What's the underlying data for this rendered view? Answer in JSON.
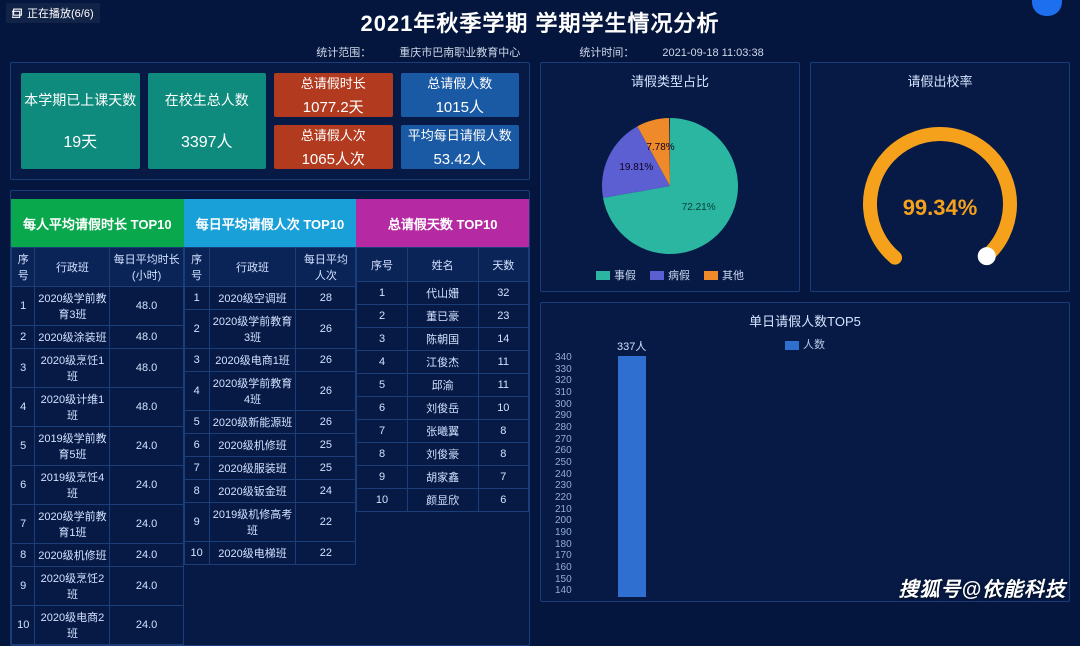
{
  "playback": "正在播放(6/6)",
  "title": "2021年秋季学期 学期学生情况分析",
  "sub_scope_label": "统计范围：",
  "sub_scope_value": "重庆市巴南职业教育中心",
  "sub_time_label": "统计时间：",
  "sub_time_value": "2021-09-18 11:03:38",
  "colors": {
    "page_bg": "#04163d",
    "panel_border": "#1a3d7a",
    "panel_bg": "#061a45"
  },
  "kpis": {
    "big": [
      {
        "label": "本学期已上课天数",
        "value": "19天",
        "bg": "#0f8b7e"
      },
      {
        "label": "在校生总人数",
        "value": "3397人",
        "bg": "#0f8b7e"
      }
    ],
    "small": [
      {
        "label": "总请假时长",
        "value": "1077.2天",
        "bg": "#b23a1f"
      },
      {
        "label": "总请假人数",
        "value": "1015人",
        "bg": "#1a5aa5"
      },
      {
        "label": "总请假人次",
        "value": "1065人次",
        "bg": "#b23a1f"
      },
      {
        "label": "平均每日请假人数",
        "value": "53.42人",
        "bg": "#1a5aa5"
      }
    ]
  },
  "tabs": [
    {
      "label": "每人平均请假时长 TOP10",
      "bg": "#0aa84d"
    },
    {
      "label": "每日平均请假人次 TOP10",
      "bg": "#1aa0d8"
    },
    {
      "label": "总请假天数 TOP10",
      "bg": "#b52aa2"
    }
  ],
  "table1": {
    "headers": [
      "序号",
      "行政班",
      "每日平均时长(小时)"
    ],
    "rows": [
      [
        "1",
        "2020级学前教育3班",
        "48.0"
      ],
      [
        "2",
        "2020级涂装班",
        "48.0"
      ],
      [
        "3",
        "2020级烹饪1班",
        "48.0"
      ],
      [
        "4",
        "2020级计维1班",
        "48.0"
      ],
      [
        "5",
        "2019级学前教育5班",
        "24.0"
      ],
      [
        "6",
        "2019级烹饪4班",
        "24.0"
      ],
      [
        "7",
        "2020级学前教育1班",
        "24.0"
      ],
      [
        "8",
        "2020级机修班",
        "24.0"
      ],
      [
        "9",
        "2020级烹饪2班",
        "24.0"
      ],
      [
        "10",
        "2020级电商2班",
        "24.0"
      ]
    ]
  },
  "table2": {
    "headers": [
      "序号",
      "行政班",
      "每日平均人次"
    ],
    "rows": [
      [
        "1",
        "2020级空调班",
        "28"
      ],
      [
        "2",
        "2020级学前教育3班",
        "26"
      ],
      [
        "3",
        "2020级电商1班",
        "26"
      ],
      [
        "4",
        "2020级学前教育4班",
        "26"
      ],
      [
        "5",
        "2020级新能源班",
        "26"
      ],
      [
        "6",
        "2020级机修班",
        "25"
      ],
      [
        "7",
        "2020级服装班",
        "25"
      ],
      [
        "8",
        "2020级钣金班",
        "24"
      ],
      [
        "9",
        "2019级机修高考班",
        "22"
      ],
      [
        "10",
        "2020级电梯班",
        "22"
      ]
    ]
  },
  "table3": {
    "headers": [
      "序号",
      "姓名",
      "天数"
    ],
    "rows": [
      [
        "1",
        "代山姗",
        "32"
      ],
      [
        "2",
        "董已豪",
        "23"
      ],
      [
        "3",
        "陈朝国",
        "14"
      ],
      [
        "4",
        "江俊杰",
        "11"
      ],
      [
        "5",
        "邱渝",
        "11"
      ],
      [
        "6",
        "刘俊岳",
        "10"
      ],
      [
        "7",
        "张曦翼",
        "8"
      ],
      [
        "8",
        "刘俊豪",
        "8"
      ],
      [
        "9",
        "胡家鑫",
        "7"
      ],
      [
        "10",
        "颜显欣",
        "6"
      ]
    ]
  },
  "pie": {
    "title": "请假类型占比",
    "slices": [
      {
        "name": "事假",
        "pct": 72.21,
        "label": "72.21%",
        "color": "#2bb6a2"
      },
      {
        "name": "病假",
        "pct": 19.81,
        "label": "19.81%",
        "color": "#5b5fd1"
      },
      {
        "name": "其他",
        "pct": 7.78,
        "label": "7.78%",
        "color": "#ef8a2a"
      }
    ],
    "legend": [
      "事假",
      "病假",
      "其他"
    ]
  },
  "gauge": {
    "title": "请假出校率",
    "value": "99.34%",
    "pct": 99.34,
    "arc_color": "#f6a11b",
    "knob_color": "#ffffff"
  },
  "bar": {
    "title": "单日请假人数TOP5",
    "legend": "人数",
    "y_ticks": [
      340,
      330,
      320,
      310,
      300,
      290,
      280,
      270,
      260,
      250,
      240,
      230,
      220,
      210,
      200,
      190,
      180,
      170,
      160,
      150,
      140
    ],
    "ymax": 340,
    "bar_color": "#2f6fd0",
    "bars": [
      {
        "label": "337人",
        "value": 337
      }
    ]
  },
  "watermark": "搜狐号@依能科技"
}
